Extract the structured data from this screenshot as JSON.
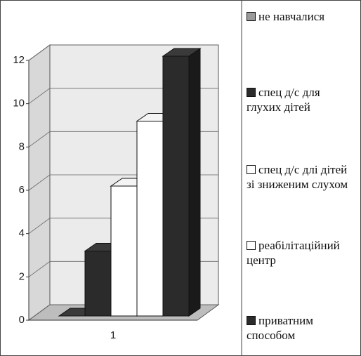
{
  "chart_data": {
    "type": "bar3d",
    "categories": [
      "1"
    ],
    "series": [
      {
        "name": "не навчалися",
        "color": "#9a9a9a",
        "values": [
          0
        ]
      },
      {
        "name": "спец д/с для глухих дітей",
        "color": "#2b2b2b",
        "values": [
          3
        ]
      },
      {
        "name": "спец д/с длі дітей зі зниженим слухом",
        "color": "#ffffff",
        "values": [
          6
        ]
      },
      {
        "name": "реабілітаційний центр",
        "color": "#ffffff",
        "values": [
          9
        ]
      },
      {
        "name": "приватним способом",
        "color": "#2b2b2b",
        "values": [
          12
        ]
      }
    ],
    "ylim": [
      0,
      12
    ],
    "yticks": [
      0,
      2,
      4,
      6,
      8,
      10,
      12
    ],
    "grid": true,
    "legend": "right"
  }
}
